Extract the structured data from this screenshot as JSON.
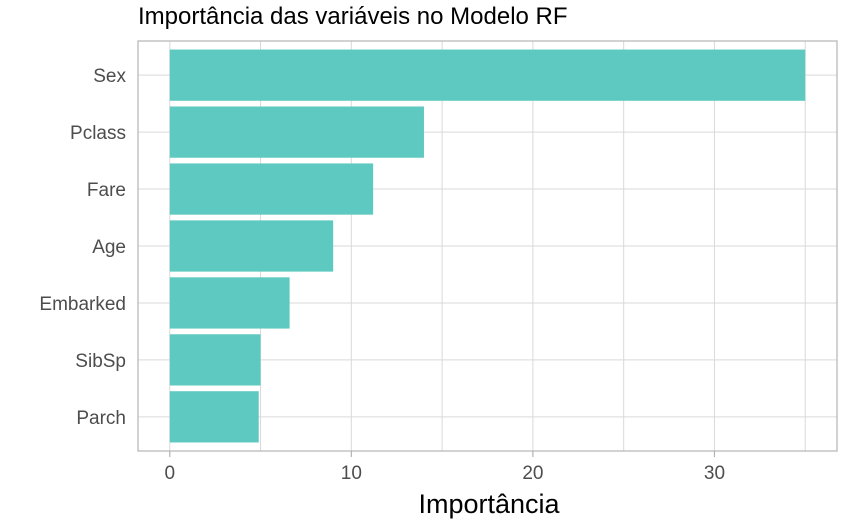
{
  "chart_data": {
    "type": "bar",
    "orientation": "horizontal",
    "title": "Importância das variáveis no Modelo RF",
    "xlabel": "Importância",
    "ylabel": "",
    "categories": [
      "Sex",
      "Pclass",
      "Fare",
      "Age",
      "Embarked",
      "SibSp",
      "Parch"
    ],
    "values": [
      35.0,
      14.0,
      11.2,
      9.0,
      6.6,
      5.0,
      4.9
    ],
    "xlim": [
      -1.75,
      36.75
    ],
    "x_ticks": [
      0,
      10,
      20,
      30
    ],
    "x_tick_labels": [
      "0",
      "10",
      "20",
      "30"
    ],
    "grid": true,
    "legend": "none",
    "colors": {
      "bar": "#5ec9c0",
      "grid": "#d9d9d9",
      "border": "#b3b3b3",
      "text": "#4d4d4d"
    }
  }
}
